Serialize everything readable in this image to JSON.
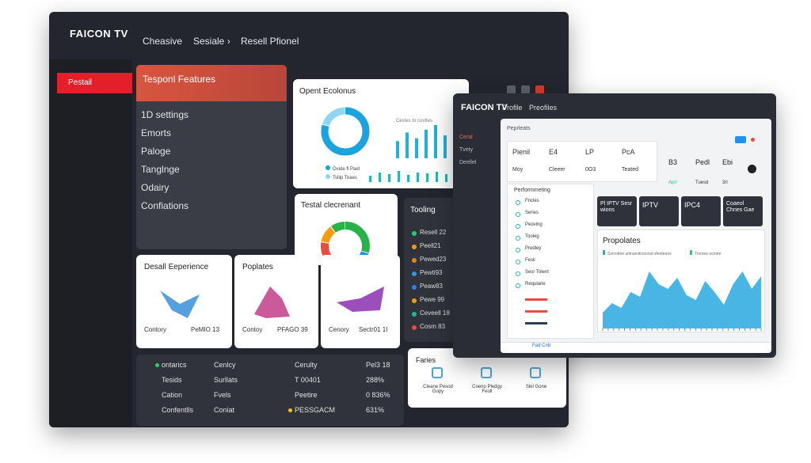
{
  "back": {
    "brand": "FAICON TV",
    "nav": [
      "Cheasive",
      "Sesiale ›",
      "Resell Pfionel"
    ],
    "sidebar_active": "Pestail",
    "features": {
      "title": "Tesponl Features",
      "items": [
        "1D settings",
        "Emorts",
        "Paloge",
        "Tanglnge",
        "Odairy",
        "Confiations"
      ]
    },
    "economics": {
      "title": "Opent Ecolonus",
      "caption": "Cestes to costtes",
      "legend": [
        "Oxide fl Paet",
        "Tsllip Toaes"
      ],
      "donut": [
        80,
        20
      ],
      "donut_colors": [
        "#1aa3de",
        "#8fd6f2"
      ],
      "bars": [
        30,
        45,
        35,
        50,
        58,
        40
      ],
      "bars_color": "#20b0d8",
      "bars2": [
        8,
        12,
        10,
        14,
        9,
        12,
        11,
        13,
        10
      ],
      "bars2_color": "#2bb5a8"
    },
    "total": {
      "title": "Testal clecrenant",
      "donut": [
        30,
        22,
        14,
        12,
        12,
        10
      ],
      "donut_colors": [
        "#2ab24a",
        "#1d8fe0",
        "#20b7c8",
        "#e74c3c",
        "#f39c12",
        "#2ab24a"
      ]
    },
    "tooling": {
      "title": "Tooling",
      "items": [
        "Resell 22",
        "Peell21",
        "Pewed23",
        "Pewti93",
        "Peaw83",
        "Pewe 99",
        "Ceveell 18",
        "Cosm 83"
      ],
      "colors": [
        "#2ecc71",
        "#f39c12",
        "#e67e22",
        "#3498db",
        "#2f80ed",
        "#f39c12",
        "#1abc9c",
        "#e74c3c"
      ]
    },
    "cards": [
      {
        "title": "Desall Eeperience",
        "left": "Contory",
        "right": "PeMIO 13"
      },
      {
        "title": "Poplates",
        "left": "Contoy",
        "right": "PFAGO 39"
      },
      {
        "left": "Cenory",
        "right": "Sectr01 1I"
      }
    ],
    "table": {
      "rows": [
        [
          "ontarics",
          "Cenlcy",
          "Cerulty",
          "Pel3 18"
        ],
        [
          "Tesids",
          "Surllats",
          "T 00401",
          "288%"
        ],
        [
          "Cation",
          "Fvels",
          "Peetire",
          "0 836%"
        ],
        [
          "Confentlls",
          "Coniat",
          "PESSGACM",
          "631%"
        ]
      ]
    },
    "faries": {
      "title": "Faries",
      "items": [
        "Cleane Pesod Gopy",
        "Coeno Pledgy Feoll",
        "Slel Gone"
      ]
    }
  },
  "front": {
    "brand": "FAICON TV",
    "nav": [
      "Profile",
      "Preofiles"
    ],
    "sidebar": [
      "Ceral",
      "Tvety",
      "Deellel"
    ],
    "heading": "Peprleats",
    "grid": [
      [
        "Pienil",
        "E4",
        "LP",
        "PcA"
      ],
      [
        "Moy",
        "Cleeer",
        "0O3",
        "Teated"
      ]
    ],
    "side_cells": [
      {
        "top": "B3",
        "bottom": "Aprl"
      },
      {
        "top": "Pedl",
        "bottom": "Tuesd"
      },
      {
        "top": "Ebi",
        "bottom": "3rl"
      }
    ],
    "list": {
      "title": "Performmeting",
      "items": [
        "Fncles",
        "Series",
        "Peoving",
        "Tooleg",
        "Predley",
        "Fesli",
        "Sesr Tolent",
        "Reqularie"
      ]
    },
    "tiles": [
      "Pl IPTV Sesr wions",
      "IPTV",
      "IPC4",
      "Coaeol Chnes Gae"
    ],
    "chart": {
      "type": "area",
      "title": "Propolates",
      "legend": [
        "Ssrcotme unlrasnitcoosnd sfeeteeos",
        "Trsoree sctotre"
      ],
      "color": "#29a8e0",
      "values": [
        20,
        32,
        26,
        46,
        40,
        72,
        56,
        50,
        64,
        42,
        36,
        60,
        46,
        30,
        56,
        72,
        50,
        66
      ]
    },
    "footer": "Fad Cnb"
  }
}
